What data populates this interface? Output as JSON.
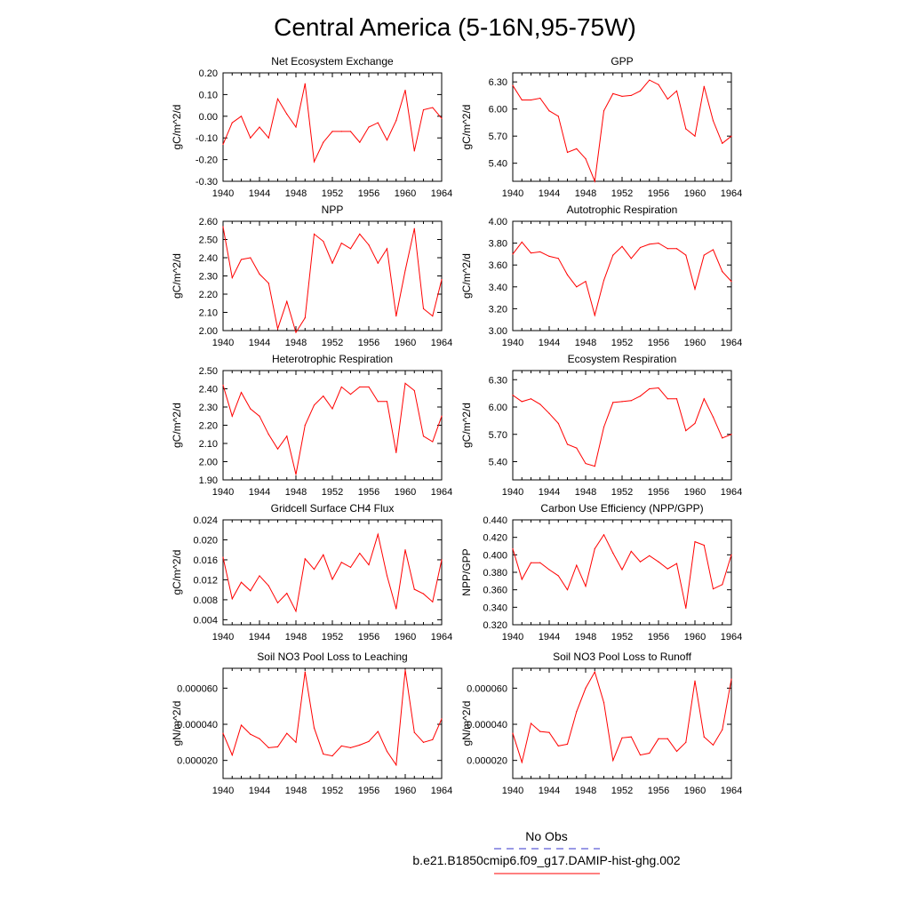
{
  "title": "Central America (5-16N,95-75W)",
  "legend": {
    "entries": [
      {
        "label": "No Obs",
        "color": "#3333cc",
        "dash": "dashed"
      },
      {
        "label": "b.e21.B1850cmip6.f09_g17.DAMIP-hist-ghg.002",
        "color": "#ff0000",
        "dash": "solid"
      }
    ]
  },
  "colors": {
    "series": "#ff0000",
    "obs": "#3333cc"
  },
  "chart_data": [
    {
      "type": "line",
      "title": "Net Ecosystem Exchange",
      "ylabel": "gC/m^2/d",
      "xlim": [
        1940,
        1964
      ],
      "ylim": [
        -0.3,
        0.2
      ],
      "xticks": [
        "1940",
        "1944",
        "1948",
        "1952",
        "1956",
        "1960",
        "1964"
      ],
      "yticks": [
        "-0.30",
        "-0.20",
        "-0.10",
        "0.00",
        "0.10",
        "0.20"
      ],
      "series": [
        {
          "values": [
            -0.13,
            -0.03,
            0.0,
            -0.1,
            -0.05,
            -0.1,
            0.08,
            0.01,
            -0.05,
            0.15,
            -0.21,
            -0.12,
            -0.07,
            -0.07,
            -0.07,
            -0.12,
            -0.05,
            -0.03,
            -0.11,
            -0.02,
            0.12,
            -0.16,
            0.03,
            0.04,
            -0.01
          ]
        }
      ],
      "x": [
        1940,
        1941,
        1942,
        1943,
        1944,
        1945,
        1946,
        1947,
        1948,
        1949,
        1950,
        1951,
        1952,
        1953,
        1954,
        1955,
        1956,
        1957,
        1958,
        1959,
        1960,
        1961,
        1962,
        1963,
        1964
      ]
    },
    {
      "type": "line",
      "title": "GPP",
      "ylabel": "gC/m^2/d",
      "xlim": [
        1940,
        1964
      ],
      "ylim": [
        5.2,
        6.4
      ],
      "xticks": [
        "1940",
        "1944",
        "1948",
        "1952",
        "1956",
        "1960",
        "1964"
      ],
      "yticks": [
        "5.40",
        "5.70",
        "6.00",
        "6.30"
      ],
      "series": [
        {
          "values": [
            6.26,
            6.1,
            6.1,
            6.12,
            5.98,
            5.92,
            5.52,
            5.56,
            5.45,
            5.2,
            5.98,
            6.17,
            6.14,
            6.15,
            6.2,
            6.32,
            6.27,
            6.11,
            6.2,
            5.78,
            5.7,
            6.25,
            5.87,
            5.62,
            5.7
          ]
        }
      ],
      "x": [
        1940,
        1941,
        1942,
        1943,
        1944,
        1945,
        1946,
        1947,
        1948,
        1949,
        1950,
        1951,
        1952,
        1953,
        1954,
        1955,
        1956,
        1957,
        1958,
        1959,
        1960,
        1961,
        1962,
        1963,
        1964
      ]
    },
    {
      "type": "line",
      "title": "NPP",
      "ylabel": "gC/m^2/d",
      "xlim": [
        1940,
        1964
      ],
      "ylim": [
        2.0,
        2.6
      ],
      "xticks": [
        "1940",
        "1944",
        "1948",
        "1952",
        "1956",
        "1960",
        "1964"
      ],
      "yticks": [
        "2.00",
        "2.10",
        "2.20",
        "2.30",
        "2.40",
        "2.50",
        "2.60"
      ],
      "series": [
        {
          "values": [
            2.57,
            2.29,
            2.39,
            2.4,
            2.31,
            2.26,
            2.01,
            2.16,
            1.99,
            2.07,
            2.53,
            2.49,
            2.37,
            2.48,
            2.45,
            2.53,
            2.47,
            2.37,
            2.45,
            2.08,
            2.33,
            2.56,
            2.12,
            2.08,
            2.28
          ]
        }
      ],
      "x": [
        1940,
        1941,
        1942,
        1943,
        1944,
        1945,
        1946,
        1947,
        1948,
        1949,
        1950,
        1951,
        1952,
        1953,
        1954,
        1955,
        1956,
        1957,
        1958,
        1959,
        1960,
        1961,
        1962,
        1963,
        1964
      ]
    },
    {
      "type": "line",
      "title": "Autotrophic Respiration",
      "ylabel": "gC/m^2/d",
      "xlim": [
        1940,
        1964
      ],
      "ylim": [
        3.0,
        4.0
      ],
      "xticks": [
        "1940",
        "1944",
        "1948",
        "1952",
        "1956",
        "1960",
        "1964"
      ],
      "yticks": [
        "3.00",
        "3.20",
        "3.40",
        "3.60",
        "3.80",
        "4.00"
      ],
      "series": [
        {
          "values": [
            3.7,
            3.81,
            3.71,
            3.72,
            3.68,
            3.66,
            3.51,
            3.4,
            3.45,
            3.14,
            3.46,
            3.69,
            3.77,
            3.66,
            3.76,
            3.79,
            3.8,
            3.75,
            3.75,
            3.69,
            3.38,
            3.69,
            3.74,
            3.54,
            3.45
          ]
        }
      ],
      "x": [
        1940,
        1941,
        1942,
        1943,
        1944,
        1945,
        1946,
        1947,
        1948,
        1949,
        1950,
        1951,
        1952,
        1953,
        1954,
        1955,
        1956,
        1957,
        1958,
        1959,
        1960,
        1961,
        1962,
        1963,
        1964
      ]
    },
    {
      "type": "line",
      "title": "Heterotrophic Respiration",
      "ylabel": "gC/m^2/d",
      "xlim": [
        1940,
        1964
      ],
      "ylim": [
        1.9,
        2.5
      ],
      "xticks": [
        "1940",
        "1944",
        "1948",
        "1952",
        "1956",
        "1960",
        "1964"
      ],
      "yticks": [
        "1.90",
        "2.00",
        "2.10",
        "2.20",
        "2.30",
        "2.40",
        "2.50"
      ],
      "series": [
        {
          "values": [
            2.42,
            2.25,
            2.38,
            2.29,
            2.25,
            2.15,
            2.07,
            2.14,
            1.93,
            2.2,
            2.31,
            2.36,
            2.29,
            2.41,
            2.37,
            2.41,
            2.41,
            2.33,
            2.33,
            2.05,
            2.43,
            2.39,
            2.14,
            2.11,
            2.25
          ]
        }
      ],
      "x": [
        1940,
        1941,
        1942,
        1943,
        1944,
        1945,
        1946,
        1947,
        1948,
        1949,
        1950,
        1951,
        1952,
        1953,
        1954,
        1955,
        1956,
        1957,
        1958,
        1959,
        1960,
        1961,
        1962,
        1963,
        1964
      ]
    },
    {
      "type": "line",
      "title": "Ecosystem Respiration",
      "ylabel": "gC/m^2/d",
      "xlim": [
        1940,
        1964
      ],
      "ylim": [
        5.2,
        6.4
      ],
      "xticks": [
        "1940",
        "1944",
        "1948",
        "1952",
        "1956",
        "1960",
        "1964"
      ],
      "yticks": [
        "5.40",
        "5.70",
        "6.00",
        "6.30"
      ],
      "series": [
        {
          "values": [
            6.13,
            6.06,
            6.09,
            6.03,
            5.93,
            5.82,
            5.59,
            5.55,
            5.38,
            5.35,
            5.78,
            6.05,
            6.06,
            6.07,
            6.12,
            6.2,
            6.21,
            6.09,
            6.09,
            5.74,
            5.82,
            6.09,
            5.89,
            5.66,
            5.7
          ]
        }
      ],
      "x": [
        1940,
        1941,
        1942,
        1943,
        1944,
        1945,
        1946,
        1947,
        1948,
        1949,
        1950,
        1951,
        1952,
        1953,
        1954,
        1955,
        1956,
        1957,
        1958,
        1959,
        1960,
        1961,
        1962,
        1963,
        1964
      ]
    },
    {
      "type": "line",
      "title": "Gridcell Surface CH4 Flux",
      "ylabel": "gC/m^2/d",
      "xlim": [
        1940,
        1964
      ],
      "ylim": [
        0.003,
        0.024
      ],
      "xticks": [
        "1940",
        "1944",
        "1948",
        "1952",
        "1956",
        "1960",
        "1964"
      ],
      "yticks": [
        "0.004",
        "0.008",
        "0.012",
        "0.016",
        "0.020",
        "0.024"
      ],
      "series": [
        {
          "values": [
            0.0165,
            0.0082,
            0.0115,
            0.0098,
            0.0128,
            0.0108,
            0.0074,
            0.0093,
            0.0057,
            0.0162,
            0.0141,
            0.017,
            0.0121,
            0.0155,
            0.0145,
            0.0173,
            0.015,
            0.0211,
            0.0128,
            0.0062,
            0.018,
            0.0101,
            0.0092,
            0.0076,
            0.016
          ]
        }
      ],
      "x": [
        1940,
        1941,
        1942,
        1943,
        1944,
        1945,
        1946,
        1947,
        1948,
        1949,
        1950,
        1951,
        1952,
        1953,
        1954,
        1955,
        1956,
        1957,
        1958,
        1959,
        1960,
        1961,
        1962,
        1963,
        1964
      ]
    },
    {
      "type": "line",
      "title": "Carbon Use Efficiency (NPP/GPP)",
      "ylabel": "NPP/GPP",
      "xlim": [
        1940,
        1964
      ],
      "ylim": [
        0.32,
        0.44
      ],
      "xticks": [
        "1940",
        "1944",
        "1948",
        "1952",
        "1956",
        "1960",
        "1964"
      ],
      "yticks": [
        "0.320",
        "0.340",
        "0.360",
        "0.380",
        "0.400",
        "0.420",
        "0.440"
      ],
      "series": [
        {
          "values": [
            0.407,
            0.372,
            0.391,
            0.391,
            0.383,
            0.376,
            0.36,
            0.388,
            0.364,
            0.407,
            0.423,
            0.402,
            0.383,
            0.404,
            0.392,
            0.399,
            0.392,
            0.384,
            0.39,
            0.339,
            0.415,
            0.411,
            0.361,
            0.366,
            0.4
          ]
        }
      ],
      "x": [
        1940,
        1941,
        1942,
        1943,
        1944,
        1945,
        1946,
        1947,
        1948,
        1949,
        1950,
        1951,
        1952,
        1953,
        1954,
        1955,
        1956,
        1957,
        1958,
        1959,
        1960,
        1961,
        1962,
        1963,
        1964
      ]
    },
    {
      "type": "line",
      "title": "Soil NO3 Pool Loss to Leaching",
      "ylabel": "gN/m^2/d",
      "xlim": [
        1940,
        1964
      ],
      "ylim": [
        1e-05,
        7.1e-05
      ],
      "xticks": [
        "1940",
        "1944",
        "1948",
        "1952",
        "1956",
        "1960",
        "1964"
      ],
      "yticks": [
        "0.000020",
        "0.000040",
        "0.000060"
      ],
      "series": [
        {
          "values": [
            3.5e-05,
            2.3e-05,
            3.95e-05,
            3.45e-05,
            3.2e-05,
            2.7e-05,
            2.75e-05,
            3.5e-05,
            3e-05,
            6.9e-05,
            3.8e-05,
            2.35e-05,
            2.25e-05,
            2.8e-05,
            2.7e-05,
            2.85e-05,
            3.05e-05,
            3.6e-05,
            2.5e-05,
            1.75e-05,
            7e-05,
            3.55e-05,
            3e-05,
            3.15e-05,
            4.3e-05
          ]
        }
      ],
      "x": [
        1940,
        1941,
        1942,
        1943,
        1944,
        1945,
        1946,
        1947,
        1948,
        1949,
        1950,
        1951,
        1952,
        1953,
        1954,
        1955,
        1956,
        1957,
        1958,
        1959,
        1960,
        1961,
        1962,
        1963,
        1964
      ]
    },
    {
      "type": "line",
      "title": "Soil NO3 Pool Loss to Runoff",
      "ylabel": "gN/m^2/d",
      "xlim": [
        1940,
        1964
      ],
      "ylim": [
        1e-05,
        7.1e-05
      ],
      "xticks": [
        "1940",
        "1944",
        "1948",
        "1952",
        "1956",
        "1960",
        "1964"
      ],
      "yticks": [
        "0.000020",
        "0.000040",
        "0.000060"
      ],
      "series": [
        {
          "values": [
            3.5e-05,
            1.9e-05,
            4.05e-05,
            3.6e-05,
            3.55e-05,
            2.8e-05,
            2.9e-05,
            4.7e-05,
            6e-05,
            6.9e-05,
            5.2e-05,
            2e-05,
            3.25e-05,
            3.3e-05,
            2.3e-05,
            2.4e-05,
            3.2e-05,
            3.2e-05,
            2.5e-05,
            3e-05,
            6.4e-05,
            3.3e-05,
            2.85e-05,
            3.7e-05,
            6.5e-05
          ]
        }
      ],
      "x": [
        1940,
        1941,
        1942,
        1943,
        1944,
        1945,
        1946,
        1947,
        1948,
        1949,
        1950,
        1951,
        1952,
        1953,
        1954,
        1955,
        1956,
        1957,
        1958,
        1959,
        1960,
        1961,
        1962,
        1963,
        1964
      ]
    }
  ]
}
